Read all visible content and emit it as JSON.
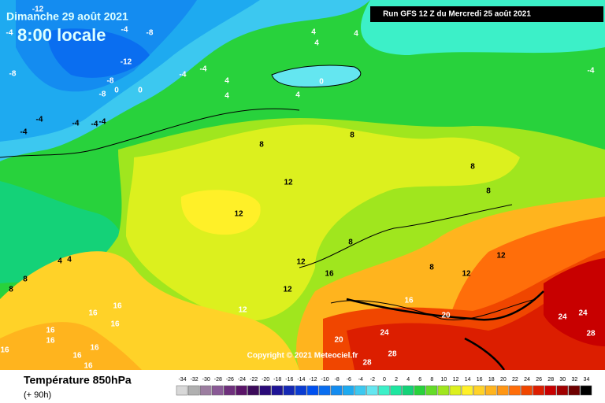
{
  "header": {
    "date": "Dimanche 29 août 2021",
    "time": "8:00 locale",
    "run": "Run GFS 12 Z du Mercredi 25 août 2021"
  },
  "copyright": "Copyright © 2021 Meteociel.fr",
  "map_labels": [
    -12,
    -4,
    -8,
    -4,
    -12,
    -8,
    -8,
    -8,
    0,
    0,
    -4,
    -4,
    4,
    4,
    4,
    4,
    4,
    4,
    0,
    8,
    8,
    12,
    12,
    8,
    8,
    8,
    12,
    16,
    12,
    12,
    12,
    12,
    8,
    16,
    20,
    20,
    24,
    28,
    28,
    24,
    24,
    28,
    -4,
    4,
    4,
    8,
    8,
    16,
    16,
    16,
    16,
    16,
    16,
    16,
    16,
    16,
    -4,
    -4,
    -4,
    -4,
    -4
  ],
  "legend": {
    "title": "Température 850hPa",
    "subtitle": "(+ 90h)",
    "levels": [
      -34,
      -32,
      -30,
      -28,
      -26,
      -24,
      -22,
      -20,
      -18,
      -16,
      -14,
      -12,
      -10,
      -8,
      -6,
      -4,
      -2,
      0,
      2,
      4,
      6,
      8,
      10,
      12,
      14,
      16,
      18,
      20,
      22,
      24,
      26,
      28,
      30,
      32,
      34
    ],
    "colors": [
      "#d8d8d8",
      "#b0b0b0",
      "#9c7ea0",
      "#8a5a96",
      "#6e2f7c",
      "#5a1468",
      "#3c0a5a",
      "#2a0a78",
      "#1e1496",
      "#1428b4",
      "#0a3cd2",
      "#0050f0",
      "#0a6ef0",
      "#148cf0",
      "#1eaaf0",
      "#3cc8f0",
      "#64e6f0",
      "#3cf0c8",
      "#1ee6a0",
      "#14d278",
      "#28d23c",
      "#64dc28",
      "#a0e61e",
      "#dcf01e",
      "#fff028",
      "#ffd228",
      "#ffb41e",
      "#ff9614",
      "#ff6e0a",
      "#f04600",
      "#dc1e00",
      "#c80000",
      "#a00000",
      "#6e0000",
      "#000000"
    ]
  }
}
